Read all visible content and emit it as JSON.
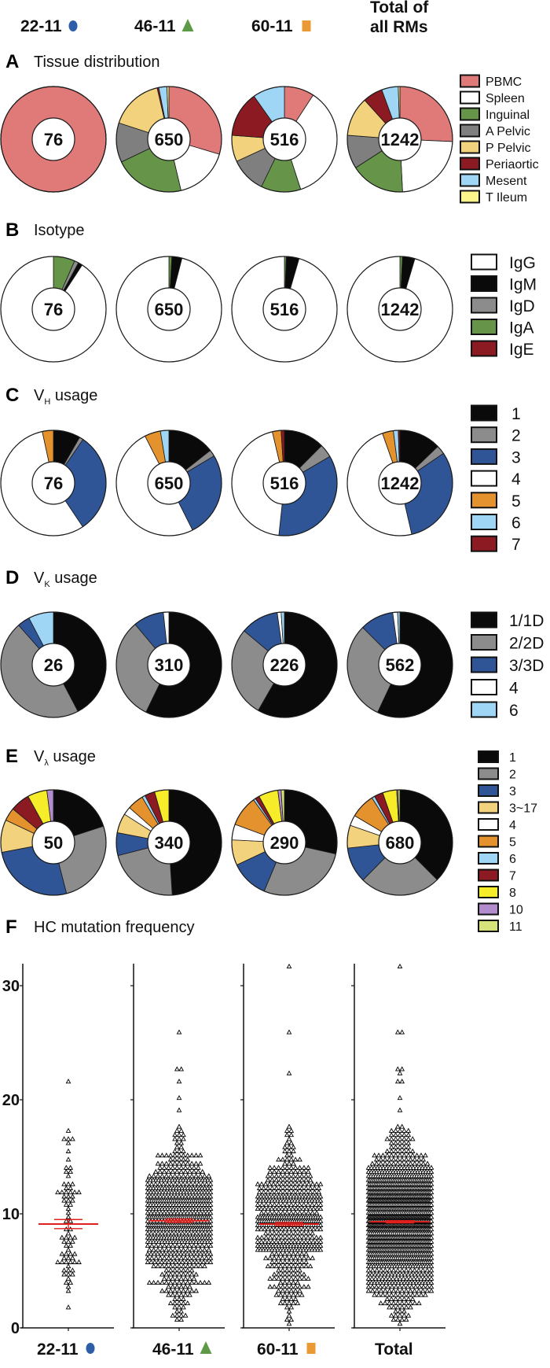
{
  "header": {
    "groups": [
      {
        "label": "22-11",
        "marker": "circle",
        "color": "#2f5ea8"
      },
      {
        "label": "46-11",
        "marker": "triangle",
        "color": "#5e9a45"
      },
      {
        "label": "60-11",
        "marker": "square",
        "color": "#ea9a35"
      }
    ],
    "total_line1": "Total of",
    "total_line2": "all RMs"
  },
  "chart_data": [
    {
      "panel": "A",
      "type": "pie",
      "donut": true,
      "title": "Tissue distribution",
      "title_sub": "",
      "title_rest": "",
      "categories": [
        "PBMC",
        "Spleen",
        "Inguinal",
        "A Pelvic",
        "P Pelvic",
        "Periaortic",
        "Mesent",
        "T Ileum"
      ],
      "colors": [
        "#e07a78",
        "#ffffff",
        "#66954a",
        "#7f7f7f",
        "#f2d27d",
        "#8b1a22",
        "#9fd6f5",
        "#fbf58c"
      ],
      "clockwise_order": [
        0,
        1,
        2,
        3,
        4,
        5,
        6,
        7
      ],
      "pies": [
        {
          "n": "76",
          "values": [
            1,
            0,
            0,
            0,
            0,
            0,
            0,
            0
          ]
        },
        {
          "n": "650",
          "values": [
            0.296,
            0.167,
            0.216,
            0.121,
            0.164,
            0.005,
            0.025,
            0.006
          ]
        },
        {
          "n": "516",
          "values": [
            0.092,
            0.358,
            0.122,
            0.109,
            0.081,
            0.14,
            0.098,
            0
          ]
        },
        {
          "n": "1242",
          "values": [
            0.257,
            0.235,
            0.167,
            0.103,
            0.121,
            0.061,
            0.051,
            0.005
          ]
        }
      ]
    },
    {
      "panel": "B",
      "type": "pie",
      "donut": true,
      "title": "Isotype",
      "title_sub": "",
      "title_rest": "",
      "categories": [
        "IgG",
        "IgM",
        "IgD",
        "IgA",
        "IgE"
      ],
      "colors": [
        "#ffffff",
        "#0a0a0a",
        "#8c8c8c",
        "#66954a",
        "#8b1a22"
      ],
      "clockwise_order": [
        3,
        2,
        1,
        4,
        0
      ],
      "pies": [
        {
          "n": "76",
          "values": [
            0.908,
            0.013,
            0.013,
            0.066,
            0
          ]
        },
        {
          "n": "650",
          "values": [
            0.96,
            0.03,
            0.001,
            0.009,
            0
          ]
        },
        {
          "n": "516",
          "values": [
            0.955,
            0.039,
            0,
            0.006,
            0
          ]
        },
        {
          "n": "1242",
          "values": [
            0.954,
            0.038,
            0,
            0.008,
            0
          ]
        }
      ]
    },
    {
      "panel": "C",
      "type": "pie",
      "donut": true,
      "title": "V",
      "title_sub": "H",
      "title_rest": " usage",
      "categories": [
        "1",
        "2",
        "3",
        "4",
        "5",
        "6",
        "7"
      ],
      "colors": [
        "#0a0a0a",
        "#8c8c8c",
        "#2f5597",
        "#ffffff",
        "#e3922e",
        "#9fd6f5",
        "#8b1a22"
      ],
      "clockwise_order": [
        0,
        1,
        2,
        3,
        4,
        5,
        6
      ],
      "pies": [
        {
          "n": "76",
          "values": [
            0.083,
            0.012,
            0.311,
            0.56,
            0.034,
            0,
            0
          ]
        },
        {
          "n": "650",
          "values": [
            0.144,
            0.02,
            0.262,
            0.499,
            0.049,
            0.026,
            0
          ]
        },
        {
          "n": "516",
          "values": [
            0.125,
            0.041,
            0.351,
            0.446,
            0.027,
            0,
            0.01
          ]
        },
        {
          "n": "1242",
          "values": [
            0.128,
            0.027,
            0.309,
            0.482,
            0.034,
            0.015,
            0.005
          ]
        }
      ]
    },
    {
      "panel": "D",
      "type": "pie",
      "donut": true,
      "title": "V",
      "title_sub": "K",
      "title_rest": " usage",
      "categories": [
        "1/1D",
        "2/2D",
        "3/3D",
        "4",
        "6"
      ],
      "colors": [
        "#0a0a0a",
        "#8c8c8c",
        "#2f5597",
        "#ffffff",
        "#9fd6f5"
      ],
      "clockwise_order": [
        0,
        1,
        2,
        3,
        4
      ],
      "pies": [
        {
          "n": "26",
          "values": [
            0.423,
            0.462,
            0.038,
            0,
            0.077
          ]
        },
        {
          "n": "310",
          "values": [
            0.572,
            0.317,
            0.094,
            0.017,
            0
          ]
        },
        {
          "n": "226",
          "values": [
            0.583,
            0.278,
            0.117,
            0.012,
            0.01
          ]
        },
        {
          "n": "562",
          "values": [
            0.57,
            0.305,
            0.103,
            0.015,
            0.007
          ]
        }
      ]
    },
    {
      "panel": "E",
      "type": "pie",
      "donut": true,
      "title": "V",
      "title_sub": "λ",
      "title_rest": " usage",
      "categories": [
        "1",
        "2",
        "3",
        "3~17",
        "4",
        "5",
        "6",
        "7",
        "8",
        "10",
        "11"
      ],
      "colors": [
        "#0a0a0a",
        "#8c8c8c",
        "#2f5597",
        "#f2d27d",
        "#ffffff",
        "#e3922e",
        "#9fd6f5",
        "#8b1a22",
        "#f6ec2a",
        "#b28ccc",
        "#d6e27a"
      ],
      "clockwise_order": [
        0,
        1,
        2,
        3,
        4,
        5,
        6,
        7,
        8,
        9,
        10
      ],
      "pies": [
        {
          "n": "50",
          "values": [
            0.2,
            0.26,
            0.26,
            0.1,
            0,
            0.04,
            0,
            0.06,
            0.06,
            0.02,
            0
          ]
        },
        {
          "n": "340",
          "values": [
            0.49,
            0.22,
            0.07,
            0.06,
            0.025,
            0.05,
            0.01,
            0.031,
            0.044,
            0,
            0
          ]
        },
        {
          "n": "290",
          "values": [
            0.285,
            0.278,
            0.117,
            0.078,
            0.048,
            0.094,
            0.007,
            0.013,
            0.06,
            0.01,
            0.01
          ]
        },
        {
          "n": "680",
          "values": [
            0.375,
            0.249,
            0.109,
            0.07,
            0.032,
            0.076,
            0.009,
            0.027,
            0.043,
            0.004,
            0.006
          ]
        }
      ]
    },
    {
      "panel": "F",
      "type": "scatter",
      "title": "HC mutation frequency",
      "ylim": [
        0,
        32
      ],
      "yticks": [
        "0",
        "10",
        "20",
        "30"
      ],
      "marker": "open-triangle",
      "mean_line_color": "#e0201c",
      "groups": [
        {
          "label": "22-11",
          "marker": "circle",
          "color": "#2f5ea8",
          "n": 76,
          "mean": 9.1,
          "sem": 0.4,
          "min": 1.4,
          "max": 21.5,
          "high_values": [
            21.5,
            16.5,
            16.5,
            16.5
          ]
        },
        {
          "label": "46-11",
          "marker": "triangle",
          "color": "#5e9a45",
          "n": 650,
          "mean": 9.4,
          "sem": 0.15,
          "min": 0.6,
          "max": 25.8,
          "high_values": [
            25.8,
            22.8,
            22.6,
            21.5,
            20.2,
            19.2,
            17.7
          ]
        },
        {
          "label": "60-11",
          "marker": "square",
          "color": "#ea9a35",
          "n": 516,
          "mean": 9.1,
          "sem": 0.15,
          "min": 0.3,
          "max": 31.5,
          "high_values": [
            31.5,
            25.8,
            22.4,
            17.5
          ]
        },
        {
          "label": "Total",
          "marker": "",
          "color": "",
          "n": 1242,
          "mean": 9.3,
          "sem": 0.1,
          "min": 0.3,
          "max": 31.5,
          "high_values": [
            31.5,
            25.8,
            25.8,
            22.8,
            22.6,
            22.4,
            21.5,
            21.5,
            20.2,
            19.2,
            17.7,
            17.5
          ]
        }
      ]
    }
  ]
}
